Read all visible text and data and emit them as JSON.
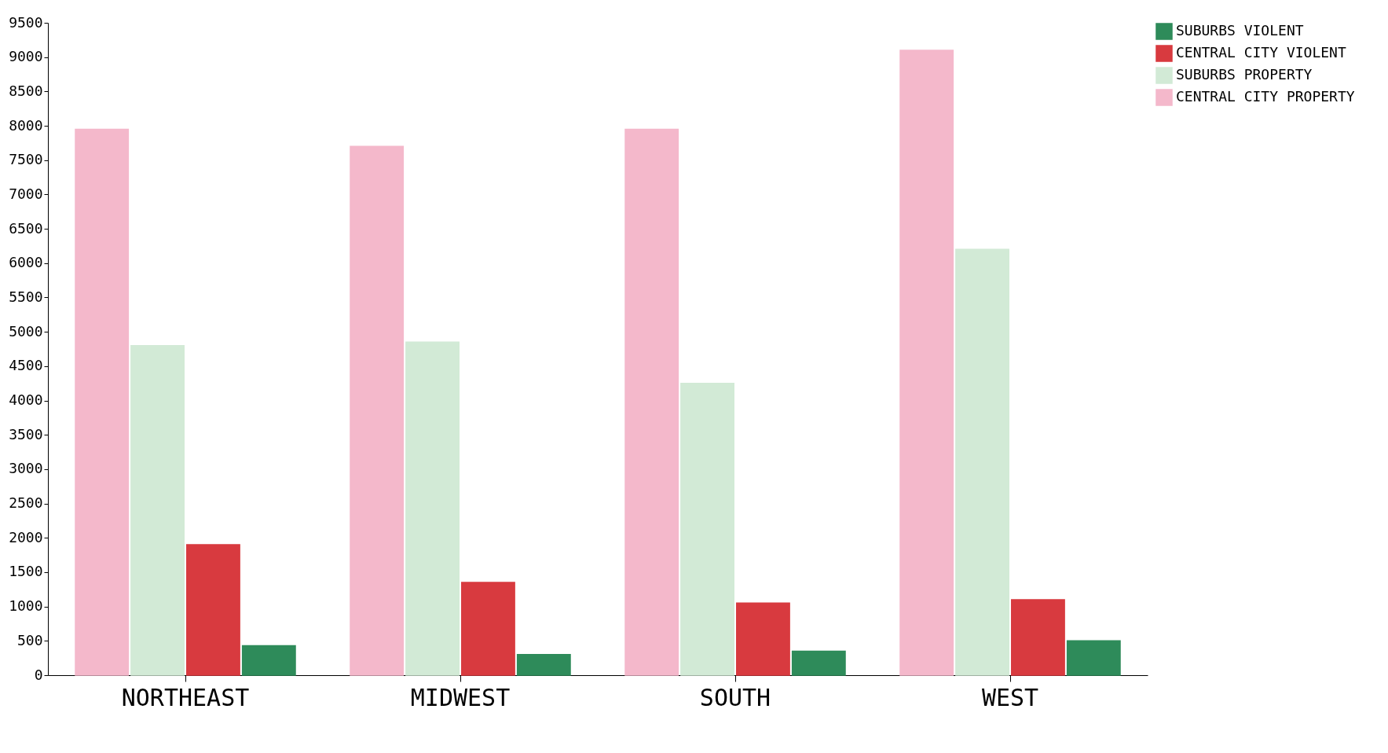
{
  "chart_data": {
    "type": "bar",
    "categories": [
      "NORTHEAST",
      "MIDWEST",
      "SOUTH",
      "WEST"
    ],
    "series": [
      {
        "name": "CENTRAL CITY PROPERTY",
        "color": "#f4b8cb",
        "values": [
          7950,
          7700,
          7950,
          9100
        ]
      },
      {
        "name": "SUBURBS PROPERTY",
        "color": "#d2ead6",
        "values": [
          4800,
          4850,
          4250,
          6200
        ]
      },
      {
        "name": "CENTRAL CITY VIOLENT",
        "color": "#d83a3f",
        "values": [
          1900,
          1350,
          1050,
          1100
        ]
      },
      {
        "name": "SUBURBS VIOLENT",
        "color": "#2e8b5a",
        "values": [
          430,
          300,
          350,
          500
        ]
      }
    ],
    "ylim": [
      0,
      9500
    ],
    "yticks": [
      0,
      500,
      1000,
      1500,
      2000,
      2500,
      3000,
      3500,
      4000,
      4500,
      5000,
      5500,
      6000,
      6500,
      7000,
      7500,
      8000,
      8500,
      9000,
      9500
    ],
    "grid": false,
    "legend": "right"
  }
}
